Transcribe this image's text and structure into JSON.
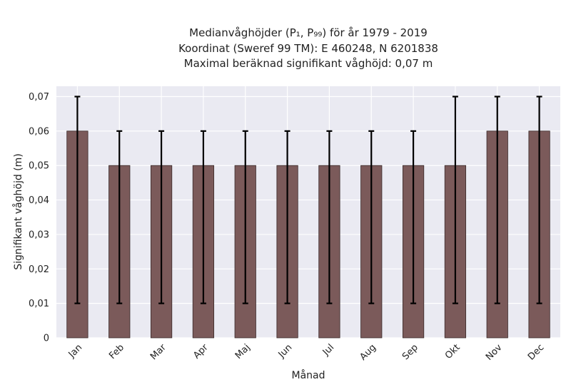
{
  "chart_data": {
    "type": "bar",
    "title_lines": [
      "Medianvåghöjder (P₁, P₉₉) för år 1979 - 2019",
      "Koordinat (Sweref 99 TM): E 460248, N 6201838",
      "Maximal beräknad signifikant våghöjd: 0,07 m"
    ],
    "xlabel": "Månad",
    "ylabel": "Signifikant våghöjd (m)",
    "categories": [
      "Jan",
      "Feb",
      "Mar",
      "Apr",
      "Maj",
      "Jun",
      "Jul",
      "Aug",
      "Sep",
      "Okt",
      "Nov",
      "Dec"
    ],
    "values": [
      0.06,
      0.05,
      0.05,
      0.05,
      0.05,
      0.05,
      0.05,
      0.05,
      0.05,
      0.05,
      0.06,
      0.06
    ],
    "error_low": [
      0.01,
      0.01,
      0.01,
      0.01,
      0.01,
      0.01,
      0.01,
      0.01,
      0.01,
      0.01,
      0.01,
      0.01
    ],
    "error_high": [
      0.07,
      0.06,
      0.06,
      0.06,
      0.06,
      0.06,
      0.06,
      0.06,
      0.06,
      0.07,
      0.07,
      0.07
    ],
    "ylim": [
      0,
      0.073
    ],
    "yticks": [
      0,
      0.01,
      0.02,
      0.03,
      0.04,
      0.05,
      0.06,
      0.07
    ],
    "ytick_labels": [
      "0",
      "0,01",
      "0,02",
      "0,03",
      "0,04",
      "0,05",
      "0,06",
      "0,07"
    ],
    "grid": true,
    "colors": {
      "bar": "#7b5a5a",
      "bar_edge": "#3a2a2a",
      "plot_bg": "#eaeaf2",
      "grid": "#ffffff",
      "error": "#000000"
    }
  }
}
